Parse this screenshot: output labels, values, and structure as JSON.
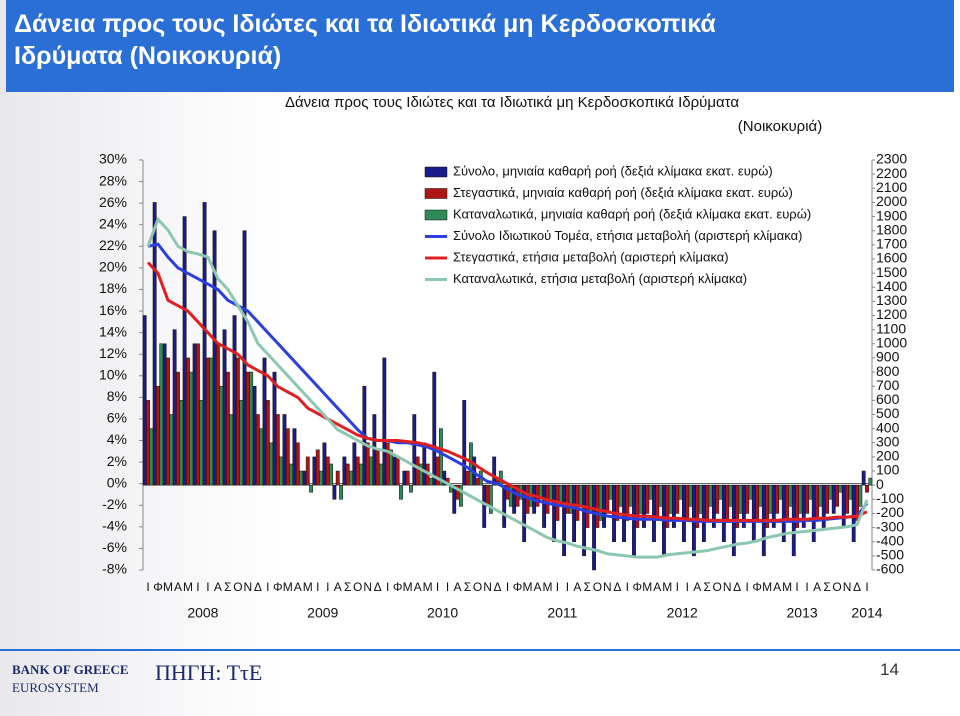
{
  "slide_title": [
    "Δάνεια προς τους Ιδιώτες και τα Ιδιωτικά μη Κερδοσκοπικά",
    "Ιδρύματα (Νοικοκυριά)"
  ],
  "footer": {
    "bank": "BANK OF GREECE",
    "system": "EUROSYSTEM",
    "source": "ΠΗΓΗ: ΤτΕ",
    "page": "14"
  },
  "chart_data": {
    "type": "combo",
    "title": [
      "Δάνεια προς τους Ιδιώτες και τα Ιδιωτικά μη Κερδοσκοπικά Ιδρύματα",
      "(Νοικοκυριά)"
    ],
    "categories": [
      "Ι",
      "Φ",
      "Μ",
      "Α",
      "Μ",
      "Ι",
      "Ι",
      "Α",
      "Σ",
      "Ο",
      "Ν",
      "Δ",
      "Ι",
      "Φ",
      "Μ",
      "Α",
      "Μ",
      "Ι",
      "Ι",
      "Α",
      "Σ",
      "Ο",
      "Ν",
      "Δ",
      "Ι",
      "Φ",
      "Μ",
      "Α",
      "Μ",
      "Ι",
      "Ι",
      "Α",
      "Σ",
      "Ο",
      "Ν",
      "Δ",
      "Ι",
      "Φ",
      "Μ",
      "Α",
      "Μ",
      "Ι",
      "Ι",
      "Α",
      "Σ",
      "Ο",
      "Ν",
      "Δ",
      "Ι",
      "Φ",
      "Μ",
      "Α",
      "Μ",
      "Ι",
      "Ι",
      "Α",
      "Σ",
      "Ο",
      "Ν",
      "Δ",
      "Ι",
      "Φ",
      "Μ",
      "Α",
      "Μ",
      "Ι",
      "Ι",
      "Α",
      "Σ",
      "Ο",
      "Ν",
      "Δ",
      "Ι"
    ],
    "years": [
      "2008",
      "2009",
      "2010",
      "2011",
      "2012",
      "2013",
      "2014"
    ],
    "ylim": [
      -8,
      30
    ],
    "yticks": [
      {
        "value": -8,
        "label": "-8%"
      },
      {
        "value": -6,
        "label": "-6%"
      },
      {
        "value": -4,
        "label": "-4%"
      },
      {
        "value": -2,
        "label": "-2%"
      },
      {
        "value": 0,
        "label": "0%"
      },
      {
        "value": 2,
        "label": "2%"
      },
      {
        "value": 4,
        "label": "4%"
      },
      {
        "value": 6,
        "label": "6%"
      },
      {
        "value": 8,
        "label": "8%"
      },
      {
        "value": 10,
        "label": "10%"
      },
      {
        "value": 12,
        "label": "12%"
      },
      {
        "value": 14,
        "label": "14%"
      },
      {
        "value": 16,
        "label": "16%"
      },
      {
        "value": 18,
        "label": "18%"
      },
      {
        "value": 20,
        "label": "20%"
      },
      {
        "value": 22,
        "label": "22%"
      },
      {
        "value": 24,
        "label": "24%"
      },
      {
        "value": 26,
        "label": "26%"
      },
      {
        "value": 28,
        "label": "28%"
      },
      {
        "value": 30,
        "label": "30%"
      }
    ],
    "y2lim": [
      -600,
      2300
    ],
    "y2ticks": [
      -600,
      -500,
      -400,
      -300,
      -200,
      -100,
      0,
      100,
      200,
      300,
      400,
      500,
      600,
      700,
      800,
      900,
      1000,
      1100,
      1200,
      1300,
      1400,
      1500,
      1600,
      1700,
      1800,
      1900,
      2000,
      2100,
      2200,
      2300
    ],
    "legend": "upper center",
    "series": [
      {
        "name": "Σύνολο, μηνιαία καθαρή ροή  (δεξιά κλίμακα εκατ. ευρώ)",
        "type": "bar",
        "axis": "y2",
        "color": "#1a1a8c",
        "values": [
          1200,
          2000,
          1000,
          1100,
          1900,
          1000,
          2000,
          1800,
          1100,
          1200,
          1800,
          700,
          900,
          800,
          500,
          400,
          100,
          200,
          300,
          -100,
          200,
          300,
          700,
          500,
          900,
          200,
          100,
          500,
          300,
          800,
          100,
          -200,
          600,
          200,
          -300,
          200,
          -300,
          -200,
          -400,
          -200,
          -300,
          -400,
          -500,
          -400,
          -500,
          -600,
          -300,
          -400,
          -400,
          -500,
          -300,
          -400,
          -500,
          -300,
          -400,
          -500,
          -400,
          -300,
          -400,
          -500,
          -300,
          -400,
          -500,
          -300,
          -400,
          -500,
          -300,
          -400,
          -300,
          -200,
          -300,
          -400,
          100
        ]
      },
      {
        "name": "Στεγαστικά, μηνιαία καθαρή ροή (δεξιά κλίμακα εκατ. ευρώ)",
        "type": "bar",
        "axis": "y2",
        "color": "#b01515",
        "values": [
          600,
          700,
          900,
          800,
          900,
          1000,
          900,
          1000,
          800,
          900,
          800,
          500,
          600,
          500,
          400,
          300,
          200,
          250,
          200,
          100,
          150,
          200,
          300,
          250,
          300,
          200,
          100,
          200,
          150,
          200,
          50,
          -100,
          100,
          50,
          -150,
          50,
          -100,
          -150,
          -200,
          -150,
          -200,
          -250,
          -200,
          -250,
          -300,
          -300,
          -200,
          -250,
          -250,
          -300,
          -200,
          -250,
          -300,
          -200,
          -250,
          -300,
          -250,
          -200,
          -250,
          -300,
          -200,
          -250,
          -300,
          -200,
          -250,
          -300,
          -200,
          -250,
          -200,
          -150,
          -200,
          -250,
          -50
        ]
      },
      {
        "name": "Καταναλωτικά, μηνιαία καθαρή ροή  (δεξιά κλίμακα εκατ. ευρώ)",
        "type": "bar",
        "axis": "y2",
        "color": "#2e8b57",
        "values": [
          400,
          1000,
          500,
          600,
          800,
          600,
          900,
          700,
          500,
          600,
          800,
          400,
          300,
          200,
          150,
          100,
          -50,
          100,
          150,
          -100,
          100,
          150,
          200,
          150,
          250,
          -100,
          -50,
          150,
          50,
          400,
          -50,
          -150,
          300,
          100,
          -200,
          100,
          -150,
          -100,
          -150,
          -100,
          -100,
          -150,
          -200,
          -150,
          -200,
          -250,
          -100,
          -150,
          -150,
          -200,
          -100,
          -150,
          -200,
          -100,
          -150,
          -200,
          -150,
          -100,
          -150,
          -200,
          -100,
          -150,
          -200,
          -100,
          -150,
          -200,
          -100,
          -150,
          -100,
          -50,
          -100,
          -150,
          50
        ]
      },
      {
        "name": "Σύνολο Ιδιωτικού Τομέα, ετήσια μεταβολή (αριστερή κλίμακα)",
        "type": "line",
        "color": "#2b3fe0",
        "values": [
          22,
          22.2,
          21,
          20,
          19.5,
          19,
          18.5,
          18,
          17,
          16.5,
          16,
          15,
          14,
          13,
          12,
          11,
          10,
          9,
          8,
          7,
          6,
          5,
          4.2,
          4,
          4,
          3.8,
          3.8,
          3.6,
          3.4,
          3,
          2.5,
          2,
          1.5,
          0.8,
          0.2,
          0,
          -0.5,
          -1,
          -1.3,
          -1.6,
          -1.8,
          -2,
          -2.1,
          -2.3,
          -2.6,
          -2.8,
          -3,
          -3.1,
          -3.2,
          -3.3,
          -3.3,
          -3.3,
          -3.4,
          -3.4,
          -3.4,
          -3.5,
          -3.5,
          -3.5,
          -3.5,
          -3.5,
          -3.5,
          -3.5,
          -3.5,
          -3.5,
          -3.5,
          -3.5,
          -3.4,
          -3.4,
          -3.3,
          -3.2,
          -3.1,
          -3,
          -1.8
        ]
      },
      {
        "name": "Στεγαστικά, ετήσια μεταβολή (αριστερή κλίμακα)",
        "type": "line",
        "color": "#e02020",
        "values": [
          20.5,
          19.5,
          17,
          16.5,
          16,
          15,
          14,
          13,
          12.5,
          12,
          11,
          10.5,
          10,
          9,
          8.5,
          8,
          7,
          6.5,
          6,
          5.5,
          5,
          4.5,
          4.2,
          4,
          4,
          4,
          3.9,
          3.8,
          3.6,
          3.3,
          3,
          2.6,
          2.2,
          1.6,
          1,
          0.5,
          0,
          -0.5,
          -1,
          -1.2,
          -1.5,
          -1.7,
          -1.9,
          -2,
          -2.2,
          -2.4,
          -2.6,
          -2.8,
          -2.9,
          -3,
          -3,
          -3.1,
          -3.2,
          -3.2,
          -3.3,
          -3.3,
          -3.4,
          -3.4,
          -3.4,
          -3.4,
          -3.4,
          -3.4,
          -3.4,
          -3.4,
          -3.3,
          -3.3,
          -3.3,
          -3.2,
          -3.2,
          -3.1,
          -3.1,
          -3,
          -2.6
        ]
      },
      {
        "name": "Καταναλωτικά, ετήσια μεταβολή (αριστερή κλίμακα)",
        "type": "line",
        "color": "#8cc7b0",
        "values": [
          22,
          24.5,
          23.5,
          22,
          21.5,
          21.3,
          21,
          19,
          18,
          16.5,
          15,
          13,
          12,
          11,
          10,
          9,
          8,
          7,
          6,
          5,
          4.5,
          4,
          3.5,
          3.2,
          3,
          2.5,
          2,
          1.5,
          1,
          0.5,
          0,
          -0.5,
          -1,
          -1.5,
          -2,
          -2.5,
          -3,
          -3.5,
          -4,
          -4.5,
          -5,
          -5.3,
          -5.5,
          -5.8,
          -6,
          -6.2,
          -6.5,
          -6.6,
          -6.7,
          -6.8,
          -6.8,
          -6.8,
          -6.6,
          -6.5,
          -6.4,
          -6.3,
          -6.2,
          -6,
          -5.8,
          -5.6,
          -5.5,
          -5.3,
          -5,
          -4.8,
          -4.6,
          -4.5,
          -4.4,
          -4.3,
          -4.2,
          -4.1,
          -4,
          -3.8,
          -1.5
        ]
      }
    ]
  }
}
